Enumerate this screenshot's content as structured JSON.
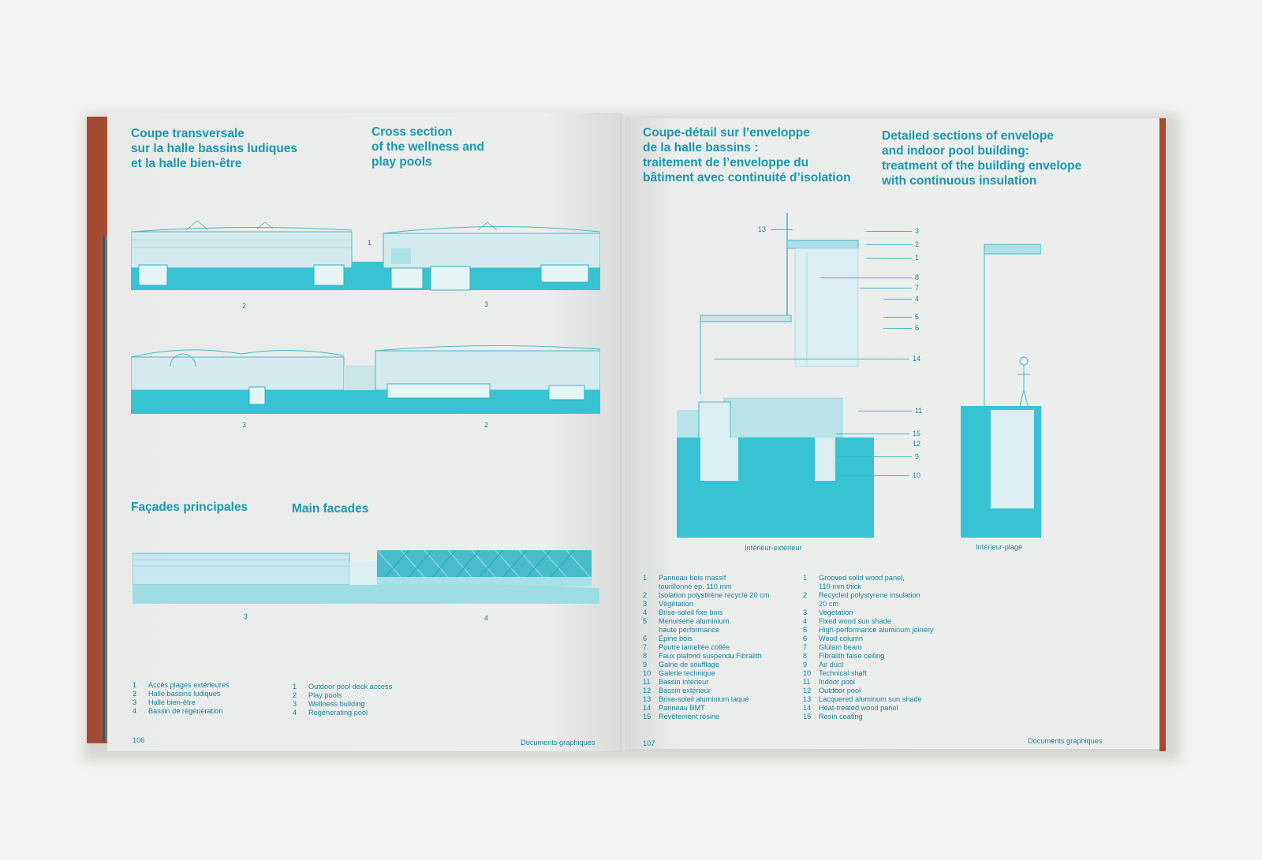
{
  "left_page": {
    "title_fr": "Coupe transversale\nsur la halle bassins ludiques\net la halle bien-être",
    "title_en": "Cross section\nof the wellness and\nplay pools",
    "section1_labels": [
      "1",
      "2",
      "3"
    ],
    "section2_labels": [
      "3",
      "2"
    ],
    "facade_title_fr": "Façades principales",
    "facade_title_en": "Main facades",
    "facade_labels": [
      "3",
      "4"
    ],
    "legend_fr": [
      {
        "n": "1",
        "t": "Accès plages extérieures"
      },
      {
        "n": "2",
        "t": "Halle bassins ludiques"
      },
      {
        "n": "3",
        "t": "Halle bien-être"
      },
      {
        "n": "4",
        "t": "Bassin de régénération"
      }
    ],
    "legend_en": [
      {
        "n": "1",
        "t": "Outdoor pool deck access"
      },
      {
        "n": "2",
        "t": "Play pools"
      },
      {
        "n": "3",
        "t": "Wellness building"
      },
      {
        "n": "4",
        "t": "Regenerating pool"
      }
    ],
    "page_number": "106",
    "footer": "Documents graphiques"
  },
  "right_page": {
    "title_fr": "Coupe-détail sur l’enveloppe\nde la halle bassins :\ntraitement de l’enveloppe du\nbâtiment avec continuité d’isolation",
    "title_en": "Detailed sections of envelope\nand indoor pool building:\ntreatment of the building envelope\nwith continuous insulation",
    "callouts": [
      "13",
      "3",
      "2",
      "1",
      "8",
      "7",
      "4",
      "5",
      "6",
      "14",
      "11",
      "15",
      "12",
      "9",
      "10"
    ],
    "caption_left": "Intérieur-extérieur",
    "caption_right": "Intérieur-plage",
    "legend_fr": [
      {
        "n": "1",
        "t": "Panneau bois massif\ntourillonné ep. 110 mm"
      },
      {
        "n": "2",
        "t": "Isolation polystirène recyclé 20 cm"
      },
      {
        "n": "3",
        "t": "Végétation"
      },
      {
        "n": "4",
        "t": "Brise-soleil fixe bois"
      },
      {
        "n": "5",
        "t": "Menuiserie aluminium\nhaute performance"
      },
      {
        "n": "6",
        "t": "Épine bois"
      },
      {
        "n": "7",
        "t": "Poutre lamellée collée"
      },
      {
        "n": "8",
        "t": "Faux plafond suspendu Fibralith"
      },
      {
        "n": "9",
        "t": "Gaine de soufflage"
      },
      {
        "n": "10",
        "t": "Galerie technique"
      },
      {
        "n": "11",
        "t": "Bassin intérieur"
      },
      {
        "n": "12",
        "t": "Bassin extérieur"
      },
      {
        "n": "13",
        "t": "Brise-soleil aluminium laqué"
      },
      {
        "n": "14",
        "t": "Panneau BMT"
      },
      {
        "n": "15",
        "t": "Revêtement résine"
      }
    ],
    "legend_en": [
      {
        "n": "1",
        "t": "Grooved solid wood panel,\n110 mm thick"
      },
      {
        "n": "2",
        "t": "Recycled polystyrene insulation\n20 cm"
      },
      {
        "n": "3",
        "t": "Vegetation"
      },
      {
        "n": "4",
        "t": "Fixed wood sun shade"
      },
      {
        "n": "5",
        "t": "High-performance aluminum joinery"
      },
      {
        "n": "6",
        "t": "Wood column"
      },
      {
        "n": "7",
        "t": "Glulam beam"
      },
      {
        "n": "8",
        "t": "Fibralith false ceiling"
      },
      {
        "n": "9",
        "t": "Air duct"
      },
      {
        "n": "10",
        "t": "Technical shaft"
      },
      {
        "n": "11",
        "t": "Indoor pool"
      },
      {
        "n": "12",
        "t": "Outdoor pool"
      },
      {
        "n": "13",
        "t": "Lacquered aluminum sun shade"
      },
      {
        "n": "14",
        "t": "Heat-treated wood panel"
      },
      {
        "n": "15",
        "t": "Resin coating"
      }
    ],
    "page_number": "107",
    "footer": "Documents graphiques"
  },
  "colors": {
    "ink": "#1a98ad",
    "pool": "#37c3d2",
    "cover": "#a54a33",
    "paper": "#eaeceb"
  }
}
